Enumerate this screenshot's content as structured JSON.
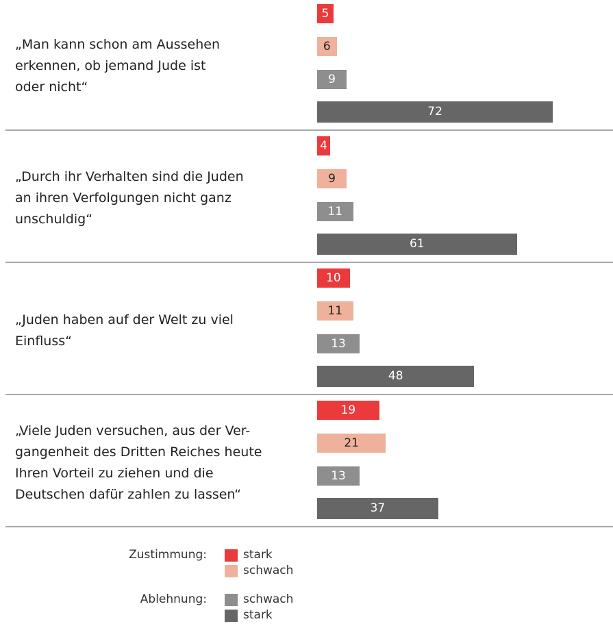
{
  "chart_data": {
    "type": "bar",
    "orientation": "horizontal",
    "categories": [
      "„Man kann schon am Aussehen\nerkennen, ob jemand Jude ist\noder nicht“",
      "„Durch ihr Verhalten sind die Juden\nan ihren Verfolgungen nicht ganz\nunschuldig“",
      "„Juden haben auf der Welt zu viel\nEinfluss“",
      "„Viele Juden versuchen, aus der Ver-\ngangenheit des Dritten Reiches heute\nIhren Vorteil zu ziehen und die\nDeutschen dafür zahlen zu lassen“"
    ],
    "series": [
      {
        "name": "stark",
        "color": "#ea3a3c",
        "label_color": "#ffffff",
        "values": [
          5,
          4,
          10,
          19
        ]
      },
      {
        "name": "schwach",
        "color": "#efb19c",
        "label_color": "#222222",
        "values": [
          6,
          9,
          11,
          21
        ]
      },
      {
        "name": "schwach",
        "color": "#8e8e8e",
        "label_color": "#ffffff",
        "values": [
          9,
          11,
          13,
          13
        ]
      },
      {
        "name": "stark",
        "color": "#666666",
        "label_color": "#ffffff",
        "values": [
          72,
          61,
          48,
          37
        ]
      }
    ],
    "legend_groups": [
      "Zustimmung:",
      "Ablehnung:"
    ]
  }
}
